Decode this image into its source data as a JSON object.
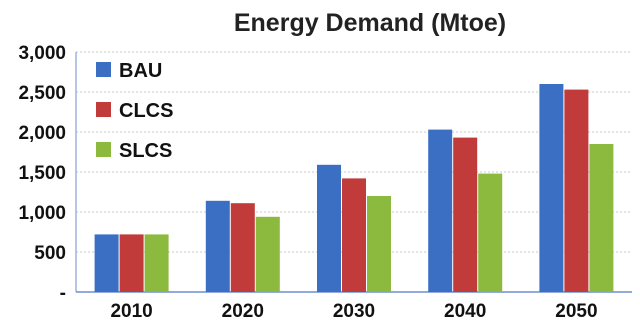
{
  "chart_data": {
    "type": "bar",
    "title": "Energy Demand (Mtoe)",
    "xlabel": "",
    "ylabel": "",
    "categories": [
      "2010",
      "2020",
      "2030",
      "2040",
      "2050"
    ],
    "series": [
      {
        "name": "BAU",
        "color": "#3a6fc4",
        "values": [
          720,
          1140,
          1590,
          2030,
          2600
        ]
      },
      {
        "name": "CLCS",
        "color": "#c23b3b",
        "values": [
          720,
          1110,
          1420,
          1930,
          2530
        ]
      },
      {
        "name": "SLCS",
        "color": "#8cba3f",
        "values": [
          720,
          940,
          1200,
          1480,
          1850
        ]
      }
    ],
    "ylim": [
      0,
      3000
    ],
    "y_ticks": [
      {
        "value": 3000,
        "label": "3,000"
      },
      {
        "value": 2500,
        "label": "2,500"
      },
      {
        "value": 2000,
        "label": "2,000"
      },
      {
        "value": 1500,
        "label": "1,500"
      },
      {
        "value": 1000,
        "label": "1,000"
      },
      {
        "value": 500,
        "label": "500"
      },
      {
        "value": 0,
        "label": "-"
      }
    ],
    "grid": true,
    "legend_position": "top-left"
  }
}
